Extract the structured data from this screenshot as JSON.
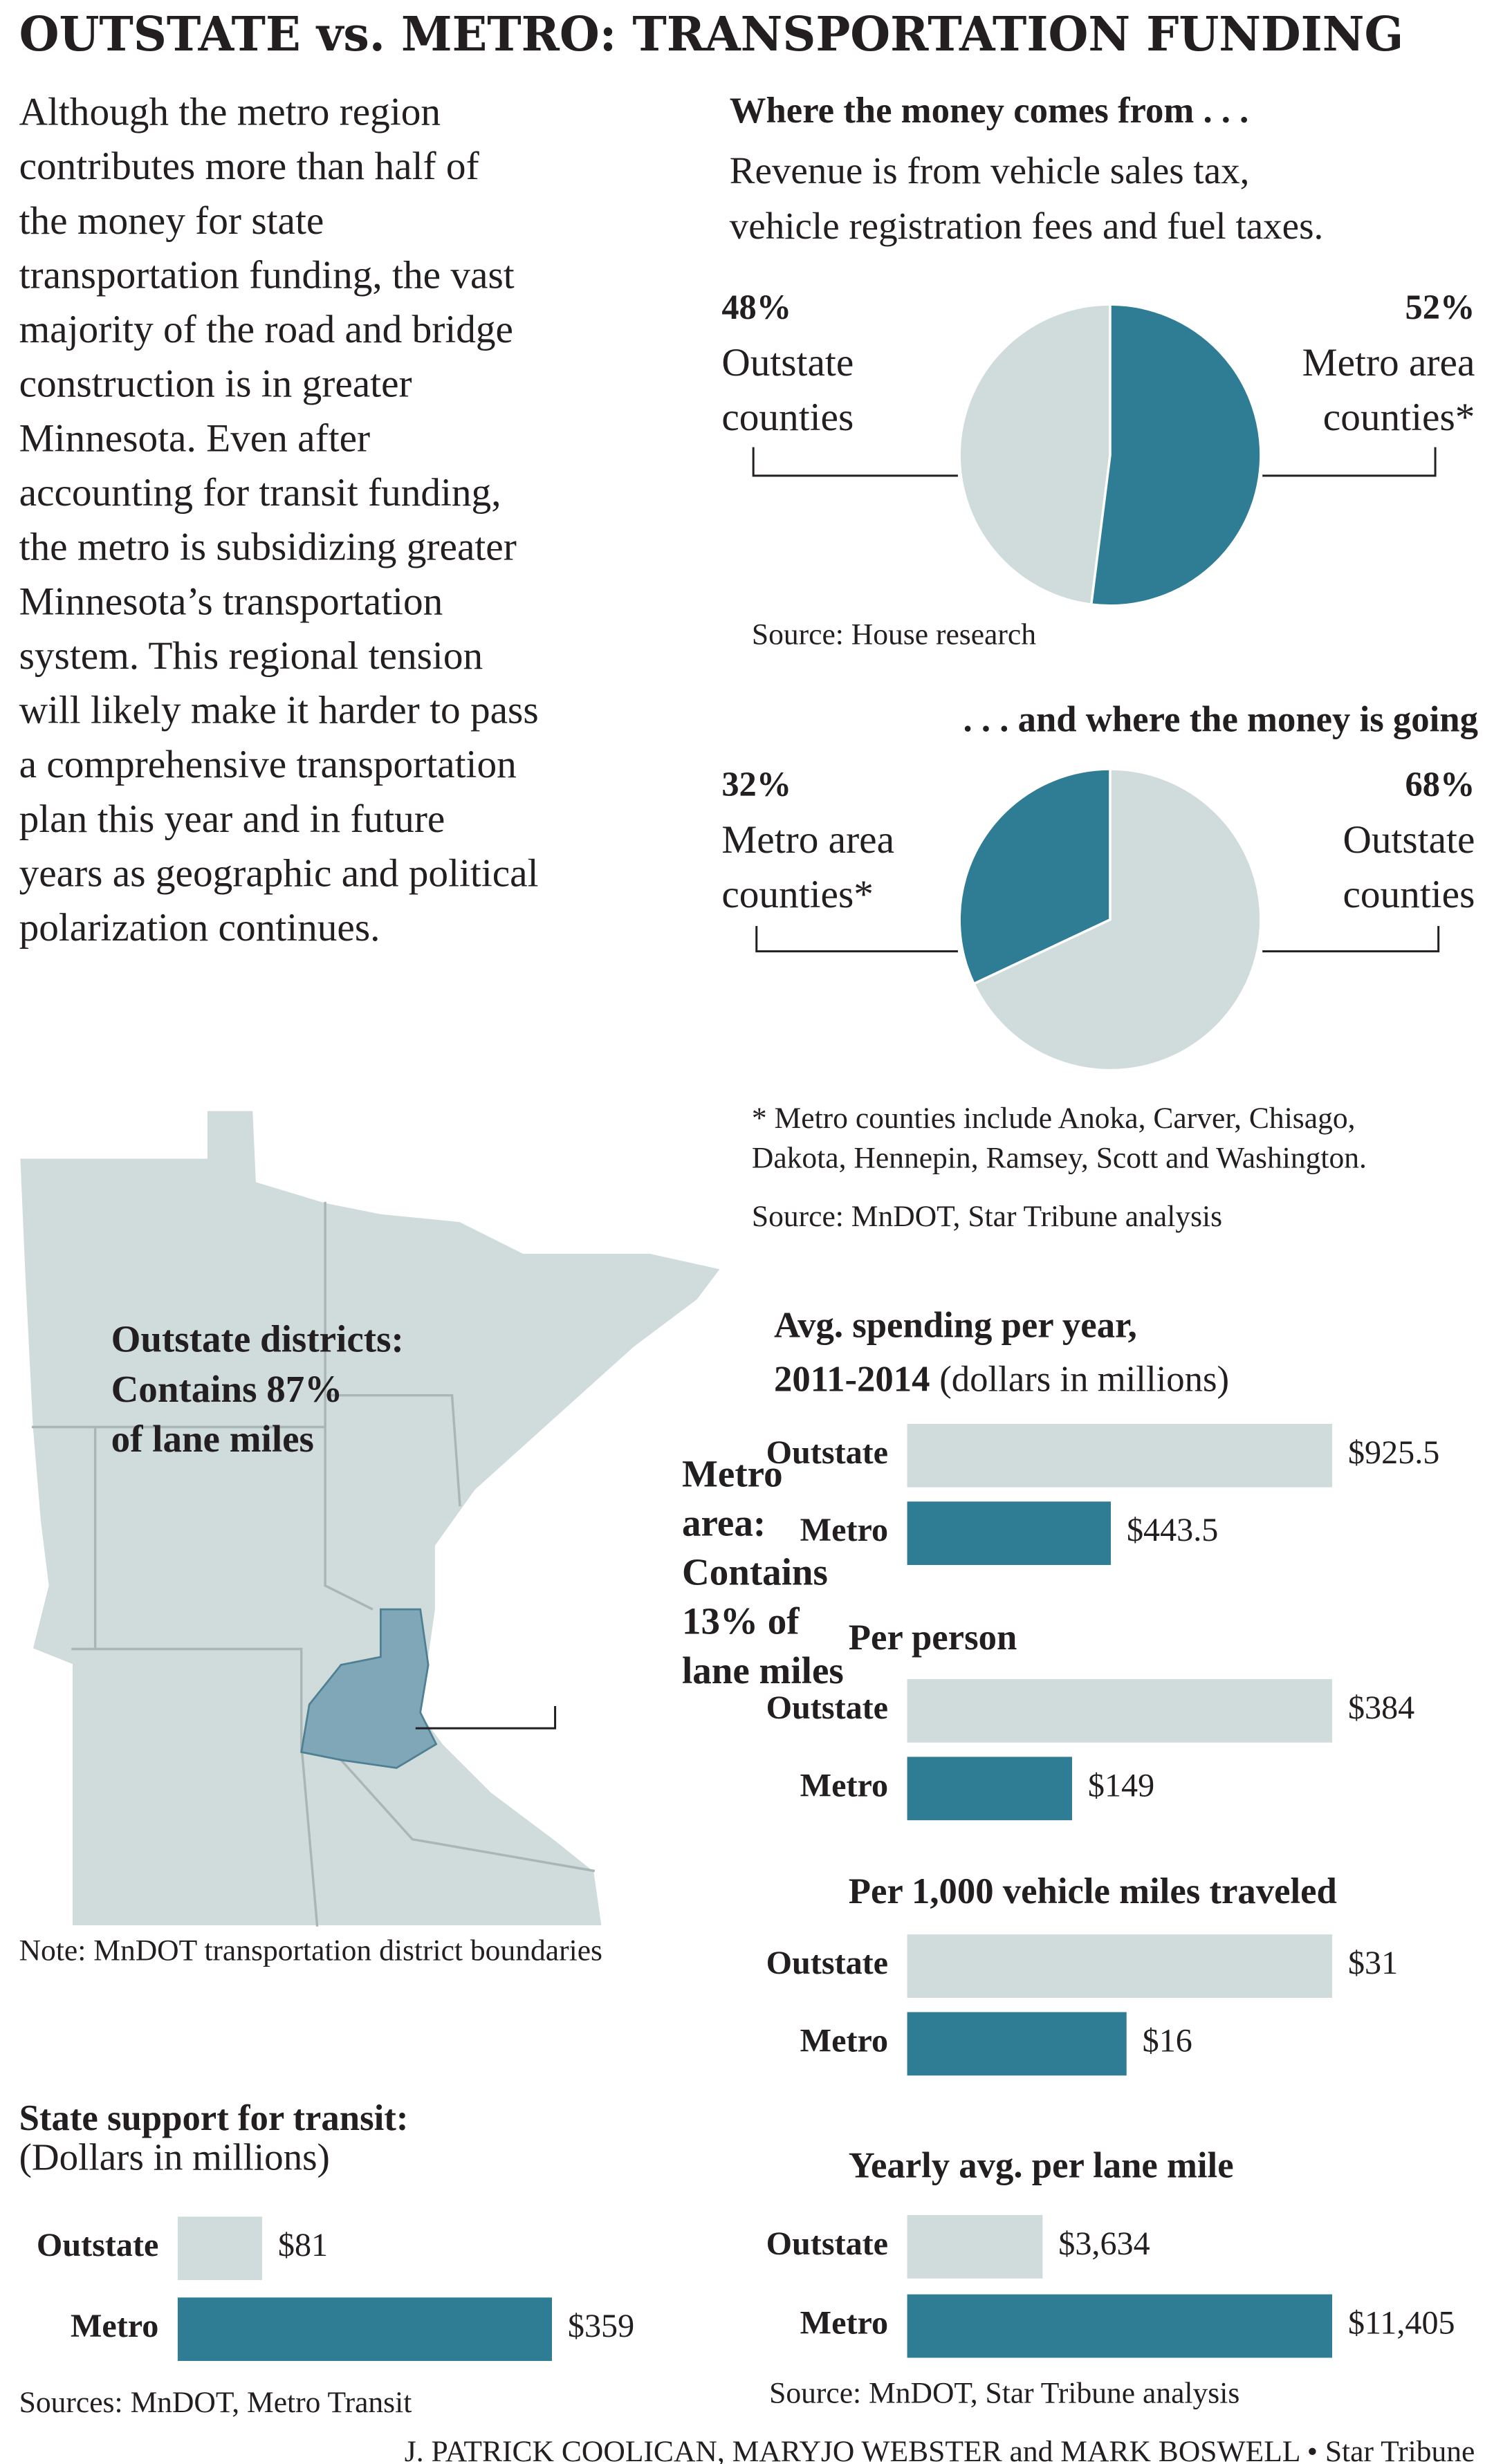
{
  "title": "OUTSTATE vs. METRO: TRANSPORTATION FUNDING",
  "intro": [
    "Although the metro region",
    "contributes more than half of",
    "the money for state",
    "transportation funding, the vast",
    "majority of the road and bridge",
    "construction is in greater",
    "Minnesota. Even after",
    "accounting for transit funding,",
    "the metro is subsidizing greater",
    "Minnesota’s transportation",
    "system. This regional tension",
    "will likely make it harder to pass",
    "a comprehensive transportation",
    "plan this year and in future",
    "years as geographic and political",
    "polarization continues."
  ],
  "map": {
    "outstate_label": [
      "Outstate districts:",
      "Contains 87%",
      "of lane miles"
    ],
    "metro_label": [
      "Metro",
      "area:",
      "Contains",
      "13% of",
      "lane miles"
    ],
    "note": "Note: MnDOT transportation district boundaries"
  },
  "credit": "J. PATRICK COOLICAN, MARYJO WEBSTER and MARK BOSWELL • Star Tribune",
  "chart_data": [
    {
      "type": "pie",
      "title": "Where the money comes from . . .",
      "subtitle": [
        "Revenue is from vehicle sales tax,",
        "vehicle registration fees and fuel taxes."
      ],
      "categories": [
        [
          "Outstate",
          "counties"
        ],
        [
          "Metro area",
          "counties*"
        ]
      ],
      "values": [
        48,
        52
      ],
      "value_labels": [
        "48%",
        "52%"
      ],
      "colors": [
        "#d0dcdc",
        "#2f7d95"
      ],
      "source": "Source: House research"
    },
    {
      "type": "pie",
      "title": ". . . and where the money is going",
      "categories": [
        [
          "Metro area",
          "counties*"
        ],
        [
          "Outstate",
          "counties"
        ]
      ],
      "values": [
        32,
        68
      ],
      "value_labels": [
        "32%",
        "68%"
      ],
      "colors": [
        "#2f7d95",
        "#d0dcdc"
      ],
      "note": [
        "* Metro counties include Anoka, Carver, Chisago,",
        "Dakota, Hennepin, Ramsey, Scott and Washington."
      ],
      "source": "Source: MnDOT, Star Tribune analysis"
    },
    {
      "type": "bar",
      "title": [
        "State support for transit:"
      ],
      "subtitle": "(Dollars in millions)",
      "categories": [
        "Outstate",
        "Metro"
      ],
      "values": [
        81,
        359
      ],
      "value_labels": [
        "$81",
        "$359"
      ],
      "colors": [
        "#d0dcdc",
        "#2f7d95"
      ],
      "source": "Sources: MnDOT, Metro Transit"
    },
    {
      "type": "bar",
      "title": [
        "Avg. spending per year,",
        "2011-2014"
      ],
      "subtitle": "(dollars in millions)",
      "categories": [
        "Outstate",
        "Metro"
      ],
      "values": [
        925.5,
        443.5
      ],
      "value_labels": [
        "$925.5",
        "$443.5"
      ],
      "colors": [
        "#d0dcdc",
        "#2f7d95"
      ]
    },
    {
      "type": "bar",
      "title": [
        "Per person"
      ],
      "categories": [
        "Outstate",
        "Metro"
      ],
      "values": [
        384,
        149
      ],
      "value_labels": [
        "$384",
        "$149"
      ],
      "colors": [
        "#d0dcdc",
        "#2f7d95"
      ]
    },
    {
      "type": "bar",
      "title": [
        "Per 1,000 vehicle miles traveled"
      ],
      "categories": [
        "Outstate",
        "Metro"
      ],
      "values": [
        31,
        16
      ],
      "value_labels": [
        "$31",
        "$16"
      ],
      "colors": [
        "#d0dcdc",
        "#2f7d95"
      ]
    },
    {
      "type": "bar",
      "title": [
        "Yearly avg. per lane mile"
      ],
      "categories": [
        "Outstate",
        "Metro"
      ],
      "values": [
        3634,
        11405
      ],
      "value_labels": [
        "$3,634",
        "$11,405"
      ],
      "colors": [
        "#d0dcdc",
        "#2f7d95"
      ],
      "source": "Source: MnDOT, Star Tribune analysis"
    }
  ]
}
